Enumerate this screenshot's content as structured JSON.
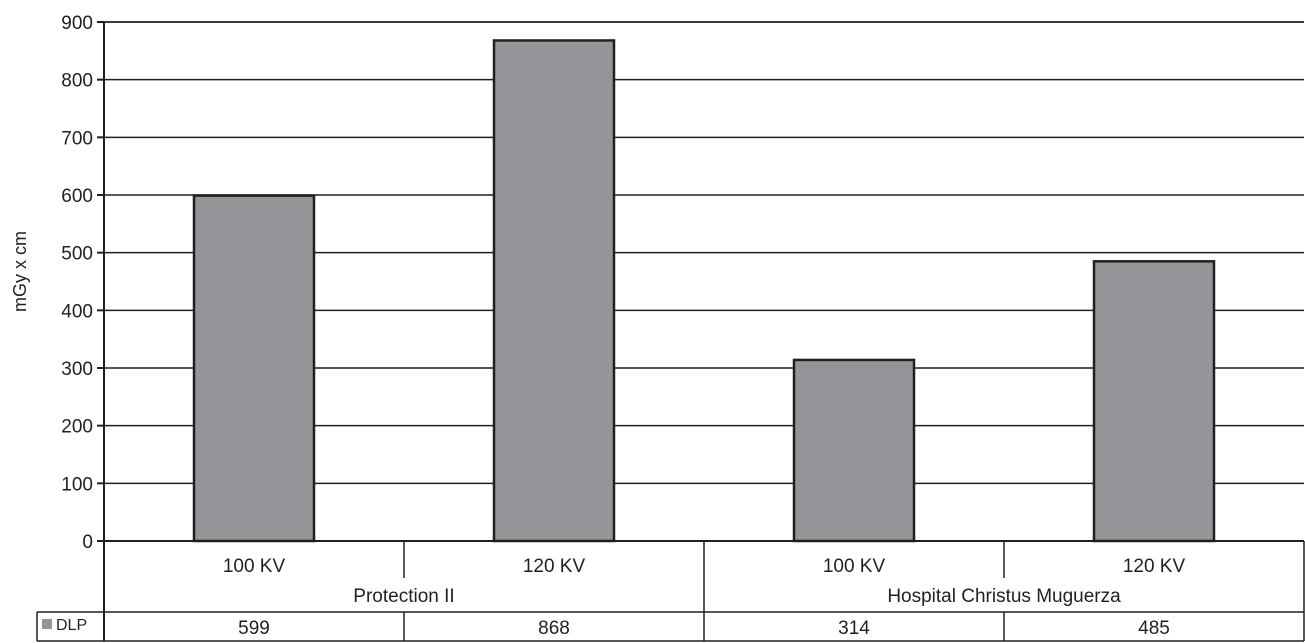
{
  "chart_data": {
    "type": "bar",
    "title": "",
    "xlabel": "",
    "ylabel": "mGy x cm",
    "ylim": [
      0,
      900
    ],
    "yticks": [
      0,
      100,
      200,
      300,
      400,
      500,
      600,
      700,
      800,
      900
    ],
    "grid": true,
    "categories": [
      "100 KV",
      "120 KV",
      "100 KV",
      "120 KV"
    ],
    "groups": [
      {
        "label": "Protection II",
        "span": 2
      },
      {
        "label": "Hospital Christus Muguerza",
        "span": 2
      }
    ],
    "series": [
      {
        "name": "DLP",
        "values": [
          599,
          868,
          314,
          485
        ],
        "color": "#939598"
      }
    ],
    "data_table": {
      "row_label": "DLP",
      "values": [
        "599",
        "868",
        "314",
        "485"
      ]
    },
    "colors": {
      "bar": "#939598",
      "stroke": "#231f20",
      "text": "#231f20"
    }
  }
}
